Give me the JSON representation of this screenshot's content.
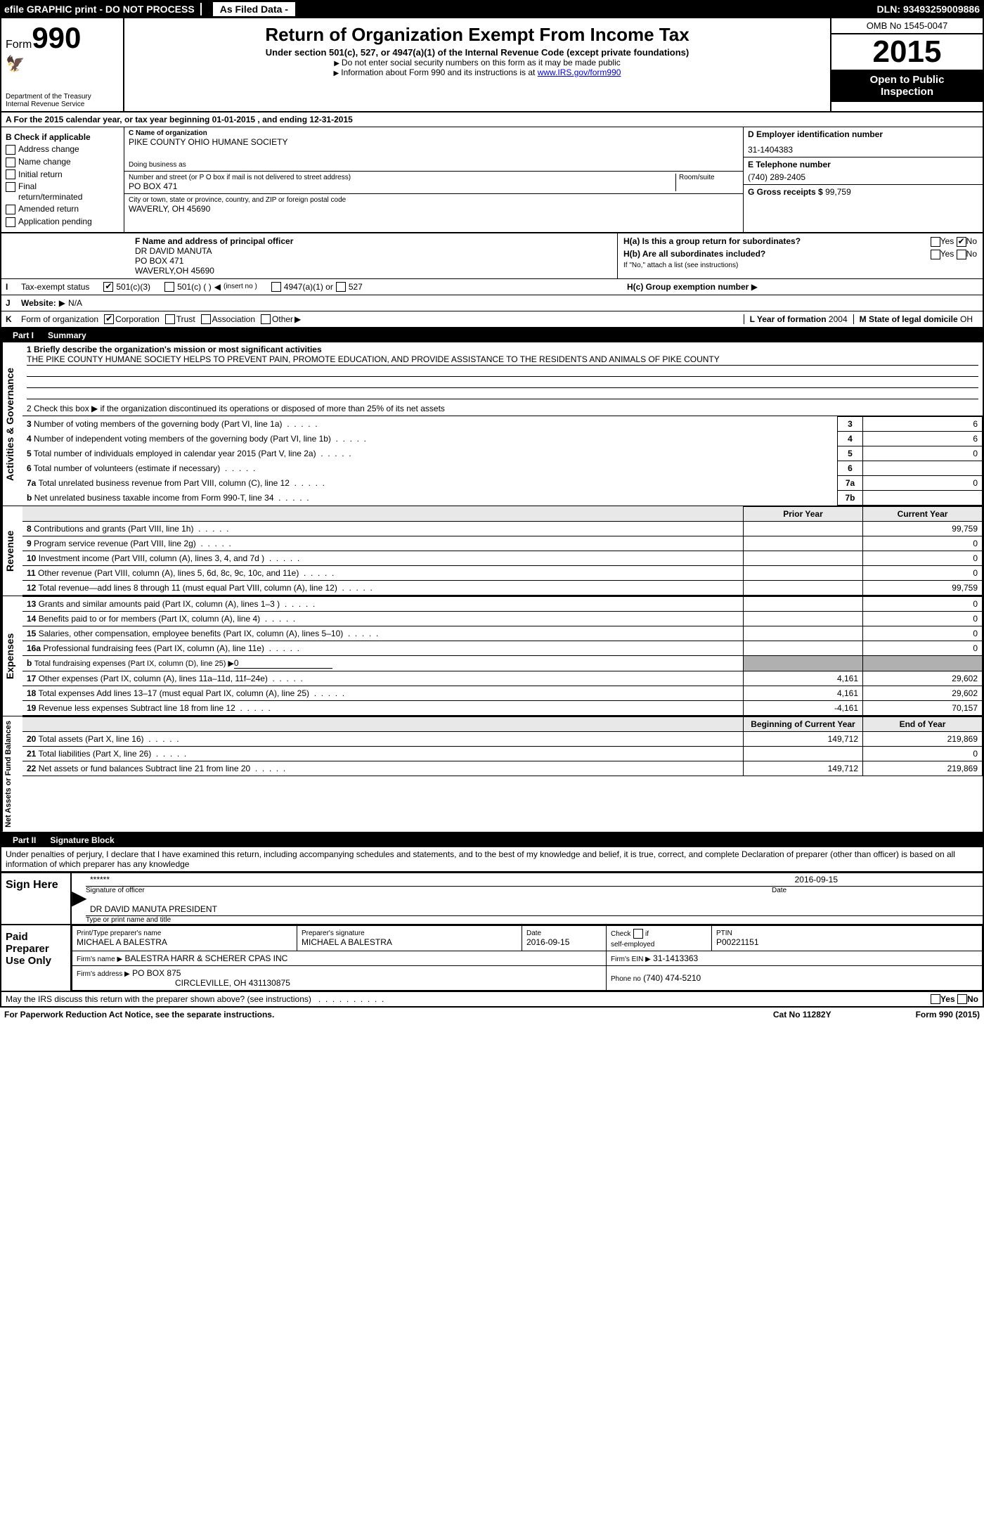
{
  "topbar": {
    "efile": "efile GRAPHIC print - DO NOT PROCESS",
    "filed": "As Filed Data -",
    "dln_label": "DLN:",
    "dln": "93493259009886"
  },
  "header": {
    "form": "Form",
    "num": "990",
    "dept1": "Department of the Treasury",
    "dept2": "Internal Revenue Service",
    "title": "Return of Organization Exempt From Income Tax",
    "subtitle": "Under section 501(c), 527, or 4947(a)(1) of the Internal Revenue Code (except private foundations)",
    "note1": "Do not enter social security numbers on this form as it may be made public",
    "note2a": "Information about Form 990 and its instructions is at ",
    "note2b": "www.IRS.gov/form990",
    "omb": "OMB No 1545-0047",
    "year": "2015",
    "open1": "Open to Public",
    "open2": "Inspection"
  },
  "lineA": {
    "text1": "A  For the 2015 calendar year, or tax year beginning ",
    "begin": "01-01-2015",
    "text2": "  , and ending ",
    "end": "12-31-2015"
  },
  "colB": {
    "hdr": "B Check if applicable",
    "c1": "Address change",
    "c2": "Name change",
    "c3": "Initial return",
    "c4a": "Final",
    "c4b": "return/terminated",
    "c5": "Amended return",
    "c6": "Application pending"
  },
  "colC": {
    "c_label": "C Name of organization",
    "c_org": "PIKE COUNTY OHIO HUMANE SOCIETY",
    "dba_label": "Doing business as",
    "addr_label": "Number and street (or P O  box if mail is not delivered to street address)",
    "room_label": "Room/suite",
    "addr": "PO BOX 471",
    "city_label": "City or town, state or province, country, and ZIP or foreign postal code",
    "city": "WAVERLY, OH  45690",
    "f_label": "F   Name and address of principal officer",
    "f_name": "DR DAVID MANUTA",
    "f_addr1": "PO BOX 471",
    "f_addr2": "WAVERLY,OH  45690"
  },
  "colD": {
    "d_label": "D Employer identification number",
    "d_val": "31-1404383",
    "e_label": "E Telephone number",
    "e_val": "(740) 289-2405",
    "g_label": "G Gross receipts $",
    "g_val": "99,759"
  },
  "colH": {
    "ha_label": "H(a)  Is this a group return for subordinates?",
    "yes": "Yes",
    "no": "No",
    "hb_label": "H(b)  Are all subordinates included?",
    "hb_note": "If \"No,\" attach a list  (see instructions)",
    "hc_label": "H(c)   Group exemption number",
    "arrow": "▶"
  },
  "rowI": {
    "label": "I",
    "text": "Tax-exempt status",
    "c1": "501(c)(3)",
    "c2": "501(c) (  )",
    "c2a": "(insert no )",
    "c3": "4947(a)(1) or",
    "c4": "527"
  },
  "rowJ": {
    "label": "J",
    "text": "Website:",
    "arrow": "▶",
    "val": "N/A"
  },
  "rowK": {
    "label": "K",
    "text": "Form of organization",
    "c1": "Corporation",
    "c2": "Trust",
    "c3": "Association",
    "c4": "Other",
    "l_label": "L Year of formation",
    "l_val": "2004",
    "m_label": "M State of legal domicile",
    "m_val": "OH"
  },
  "part1": {
    "title": "Part I",
    "name": "Summary",
    "l1a": "1 Briefly describe the organization's mission or most significant activities",
    "l1b": "THE PIKE COUNTY HUMANE SOCIETY HELPS TO PREVENT PAIN, PROMOTE EDUCATION, AND PROVIDE ASSISTANCE TO THE RESIDENTS AND ANIMALS OF PIKE COUNTY",
    "l2": "2  Check this box ▶    if the organization discontinued its operations or disposed of more than 25% of its net assets",
    "governance_rows": [
      {
        "n": "3",
        "t": "Number of voting members of the governing body (Part VI, line 1a)",
        "box": "3",
        "v": "6"
      },
      {
        "n": "4",
        "t": "Number of independent voting members of the governing body (Part VI, line 1b)",
        "box": "4",
        "v": "6"
      },
      {
        "n": "5",
        "t": "Total number of individuals employed in calendar year 2015 (Part V, line 2a)",
        "box": "5",
        "v": "0"
      },
      {
        "n": "6",
        "t": "Total number of volunteers (estimate if necessary)",
        "box": "6",
        "v": ""
      },
      {
        "n": "7a",
        "t": "Total unrelated business revenue from Part VIII, column (C), line 12",
        "box": "7a",
        "v": "0"
      },
      {
        "n": "b",
        "t": "Net unrelated business taxable income from Form 990-T, line 34",
        "box": "7b",
        "v": ""
      }
    ]
  },
  "revenue": {
    "hdr_prior": "Prior Year",
    "hdr_curr": "Current Year",
    "rows": [
      {
        "n": "8",
        "t": "Contributions and grants (Part VIII, line 1h)",
        "p": "",
        "c": "99,759"
      },
      {
        "n": "9",
        "t": "Program service revenue (Part VIII, line 2g)",
        "p": "",
        "c": "0"
      },
      {
        "n": "10",
        "t": "Investment income (Part VIII, column (A), lines 3, 4, and 7d )",
        "p": "",
        "c": "0"
      },
      {
        "n": "11",
        "t": "Other revenue (Part VIII, column (A), lines 5, 6d, 8c, 9c, 10c, and 11e)",
        "p": "",
        "c": "0"
      },
      {
        "n": "12",
        "t": "Total revenue—add lines 8 through 11 (must equal Part VIII, column (A), line 12)",
        "p": "",
        "c": "99,759"
      }
    ]
  },
  "expenses": {
    "rows": [
      {
        "n": "13",
        "t": "Grants and similar amounts paid (Part IX, column (A), lines 1–3 )",
        "p": "",
        "c": "0"
      },
      {
        "n": "14",
        "t": "Benefits paid to or for members (Part IX, column (A), line 4)",
        "p": "",
        "c": "0"
      },
      {
        "n": "15",
        "t": "Salaries, other compensation, employee benefits (Part IX, column (A), lines 5–10)",
        "p": "",
        "c": "0"
      },
      {
        "n": "16a",
        "t": "Professional fundraising fees (Part IX, column (A), line 11e)",
        "p": "",
        "c": "0"
      }
    ],
    "r16b_n": "b",
    "r16b_t": "Total fundraising expenses (Part IX, column (D), line 25) ▶",
    "r16b_v": "0",
    "rows2": [
      {
        "n": "17",
        "t": "Other expenses (Part IX, column (A), lines 11a–11d, 11f–24e)",
        "p": "4,161",
        "c": "29,602"
      },
      {
        "n": "18",
        "t": "Total expenses  Add lines 13–17 (must equal Part IX, column (A), line 25)",
        "p": "4,161",
        "c": "29,602"
      },
      {
        "n": "19",
        "t": "Revenue less expenses  Subtract line 18 from line 12",
        "p": "-4,161",
        "c": "70,157"
      }
    ]
  },
  "netassets": {
    "hdr_beg": "Beginning of Current Year",
    "hdr_end": "End of Year",
    "rows": [
      {
        "n": "20",
        "t": "Total assets (Part X, line 16)",
        "p": "149,712",
        "c": "219,869"
      },
      {
        "n": "21",
        "t": "Total liabilities (Part X, line 26)",
        "p": "",
        "c": "0"
      },
      {
        "n": "22",
        "t": "Net assets or fund balances  Subtract line 21 from line 20",
        "p": "149,712",
        "c": "219,869"
      }
    ]
  },
  "part2": {
    "title": "Part II",
    "name": "Signature Block",
    "perjury": "Under penalties of perjury, I declare that I have examined this return, including accompanying schedules and statements, and to the best of my knowledge and belief, it is true, correct, and complete  Declaration of preparer (other than officer) is based on all information of which preparer has any knowledge"
  },
  "sign": {
    "here": "Sign Here",
    "stars": "******",
    "sig_officer": "Signature of officer",
    "date_label": "Date",
    "date": "2016-09-15",
    "name": "DR DAVID MANUTA PRESIDENT",
    "name_label": "Type or print name and title"
  },
  "prep": {
    "left": "Paid Preparer Use Only",
    "c1": "Print/Type preparer's name",
    "c1v": "MICHAEL A BALESTRA",
    "c2": "Preparer's signature",
    "c2v": "MICHAEL A BALESTRA",
    "c3": "Date",
    "c3v": "2016-09-15",
    "c4a": "Check",
    "c4b": "if",
    "c4c": "self-employed",
    "c5": "PTIN",
    "c5v": "P00221151",
    "firm_name_l": "Firm's name   ▶",
    "firm_name": "BALESTRA HARR & SCHERER CPAS INC",
    "firm_ein_l": "Firm's EIN ▶",
    "firm_ein": "31-1413363",
    "firm_addr_l": "Firm's address ▶",
    "firm_addr1": "PO BOX 875",
    "firm_addr2": "CIRCLEVILLE, OH  431130875",
    "phone_l": "Phone no",
    "phone": "(740) 474-5210"
  },
  "discuss": {
    "text": "May the IRS discuss this return with the preparer shown above? (see instructions)",
    "yes": "Yes",
    "no": "No"
  },
  "footer": {
    "left": "For Paperwork Reduction Act Notice, see the separate instructions.",
    "mid": "Cat No  11282Y",
    "right": "Form 990 (2015)"
  },
  "sidelabels": {
    "gov": "Activities & Governance",
    "rev": "Revenue",
    "exp": "Expenses",
    "net": "Net Assets or Fund Balances"
  }
}
